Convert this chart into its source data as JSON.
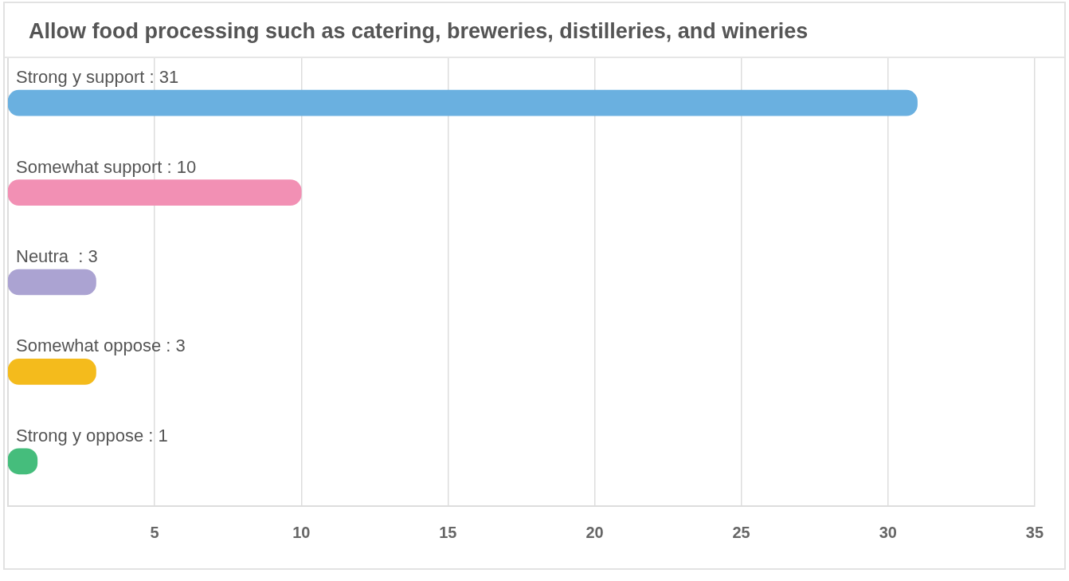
{
  "chart_data": {
    "type": "bar",
    "orientation": "horizontal",
    "title": "Allow food processing such as catering, breweries, distilleries, and wineries",
    "categories": [
      "Strong y support : 31",
      "Somewhat support : 10",
      "Neutra  : 3",
      "Somewhat oppose : 3",
      "Strong y oppose : 1"
    ],
    "values": [
      31,
      10,
      3,
      3,
      1
    ],
    "colors": [
      "#6ab0e0",
      "#f290b4",
      "#aba3d2",
      "#f4bb1c",
      "#45bd7c"
    ],
    "xlim": [
      0,
      35
    ],
    "xticks": [
      5,
      10,
      15,
      20,
      25,
      30,
      35
    ],
    "grid": "x"
  }
}
